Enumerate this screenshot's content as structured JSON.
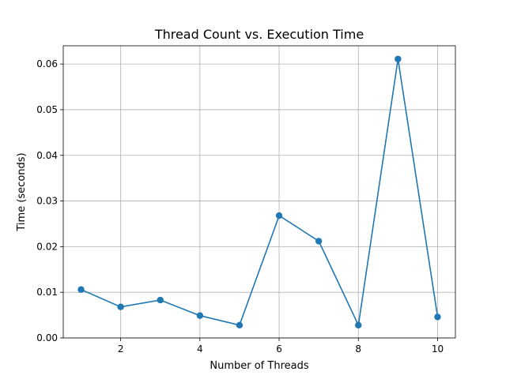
{
  "chart_data": {
    "type": "line",
    "title": "Thread Count vs. Execution Time",
    "xlabel": "Number of Threads",
    "ylabel": "Time (seconds)",
    "xlim": [
      0.55,
      10.45
    ],
    "ylim": [
      0.0,
      0.064
    ],
    "xticks": [
      2,
      4,
      6,
      8,
      10
    ],
    "xtick_labels": [
      "2",
      "4",
      "6",
      "8",
      "10"
    ],
    "yticks": [
      0.0,
      0.01,
      0.02,
      0.03,
      0.04,
      0.05,
      0.06
    ],
    "ytick_labels": [
      "0.00",
      "0.01",
      "0.02",
      "0.03",
      "0.04",
      "0.05",
      "0.06"
    ],
    "grid": true,
    "series": [
      {
        "color": "#1f77b4",
        "marker": "circle",
        "x": [
          1,
          2,
          3,
          4,
          5,
          6,
          7,
          8,
          9,
          10
        ],
        "y": [
          0.0106,
          0.0068,
          0.0083,
          0.0049,
          0.0028,
          0.0268,
          0.0212,
          0.0028,
          0.0611,
          0.0046
        ]
      }
    ]
  }
}
